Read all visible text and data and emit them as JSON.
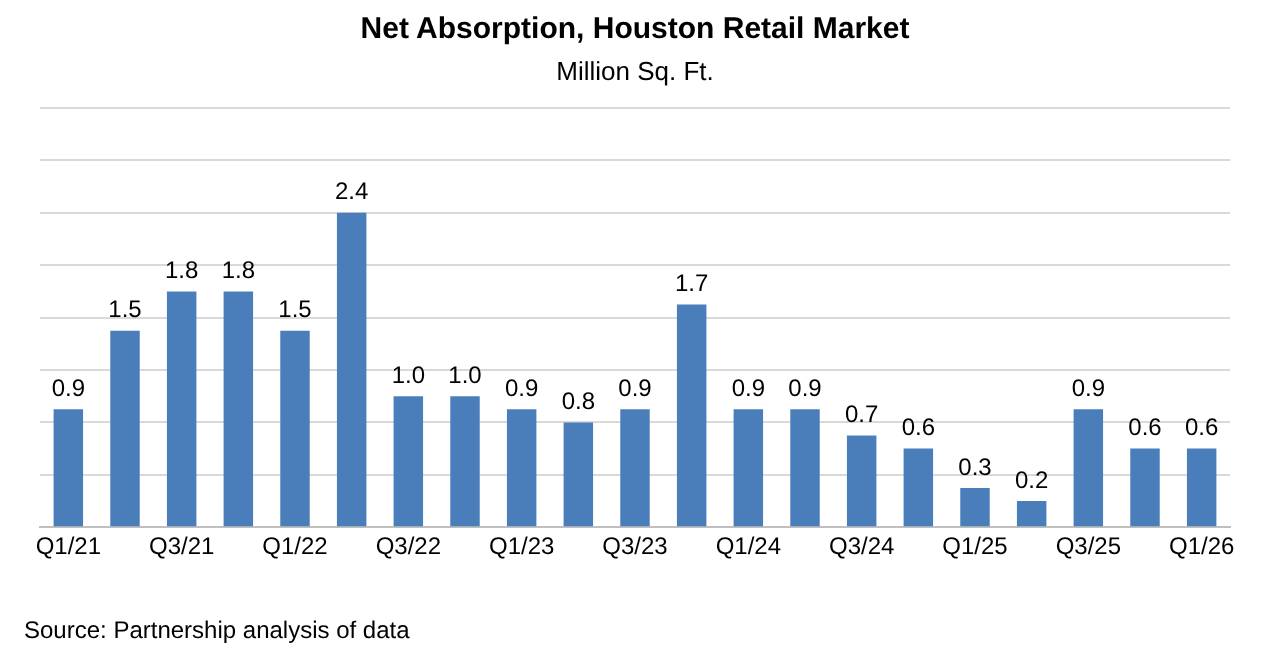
{
  "chart_data": {
    "type": "bar",
    "title": "Net Absorption, Houston Retail Market",
    "subtitle": "Million Sq. Ft.",
    "categories": [
      "Q1/21",
      null,
      "Q3/21",
      null,
      "Q1/22",
      null,
      "Q3/22",
      null,
      "Q1/23",
      null,
      "Q3/23",
      null,
      "Q1/24",
      null,
      "Q3/24",
      null,
      "Q1/25",
      null,
      "Q3/25",
      null,
      "Q1/26"
    ],
    "values": [
      0.9,
      1.5,
      1.8,
      1.8,
      1.5,
      2.4,
      1.0,
      1.0,
      0.9,
      0.8,
      0.9,
      1.7,
      0.9,
      0.9,
      0.7,
      0.6,
      0.3,
      0.2,
      0.9,
      0.6,
      0.6
    ],
    "value_labels": [
      "0.9",
      "1.5",
      "1.8",
      "1.8",
      "1.5",
      "2.4",
      "1.0",
      "1.0",
      "0.9",
      "0.8",
      "0.9",
      "1.7",
      "0.9",
      "0.9",
      "0.7",
      "0.6",
      "0.3",
      "0.2",
      "0.9",
      "0.6",
      "0.6"
    ],
    "color": "#4a7ebb",
    "ylim": [
      0,
      3.2
    ],
    "yticks": [
      {
        "value": 0,
        "label": null
      },
      {
        "value": 0.4,
        "label": null
      },
      {
        "value": 0.8,
        "label": null
      },
      {
        "value": 1.2,
        "label": null
      },
      {
        "value": 1.6,
        "label": null
      },
      {
        "value": 2,
        "label": null
      },
      {
        "value": 2.4,
        "label": null
      },
      {
        "value": 2.8,
        "label": null
      },
      {
        "value": 3.2,
        "label": null
      }
    ],
    "grid": "y",
    "legend": false,
    "annotations": [
      "Source: Partnership analysis of data"
    ]
  }
}
